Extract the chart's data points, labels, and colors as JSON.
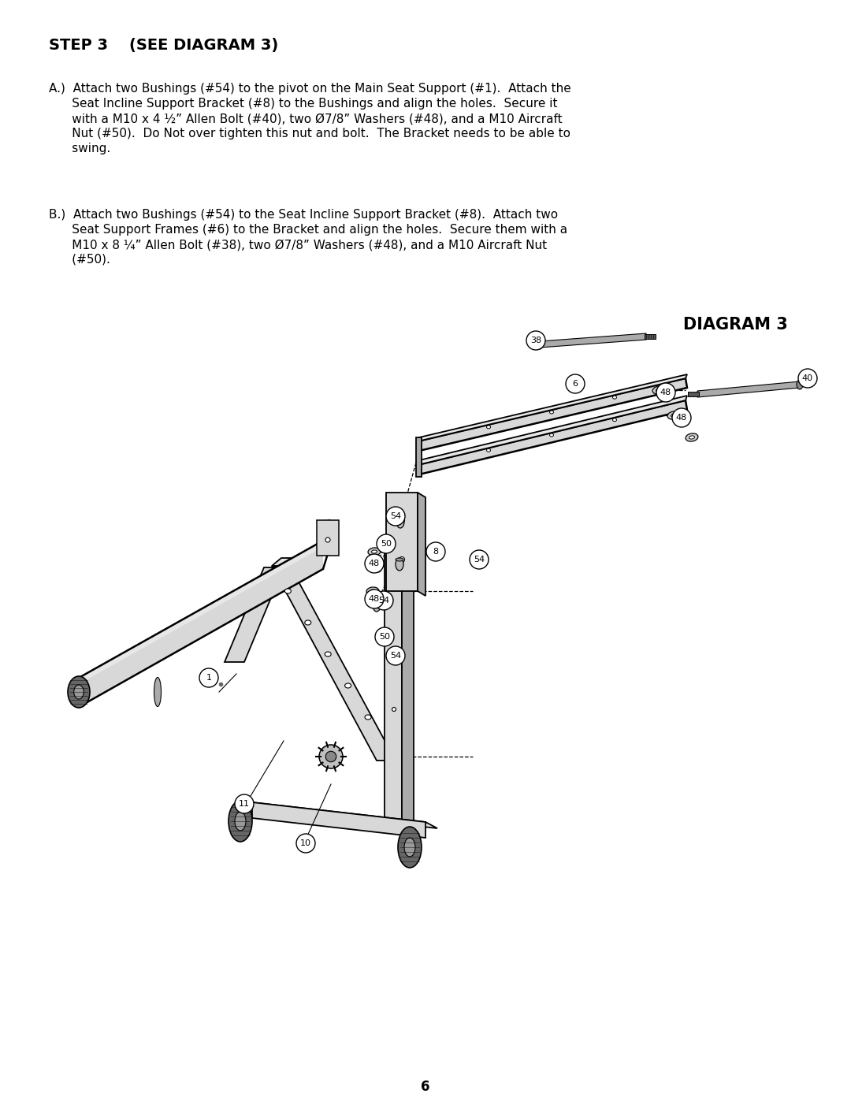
{
  "bg_color": "#ffffff",
  "title": "STEP 3    (SEE DIAGRAM 3)",
  "diagram_label": "DIAGRAM 3",
  "page_number": "6",
  "para_A_lines": [
    "A.)  Attach two Bushings (#54) to the pivot on the Main Seat Support (#1).  Attach the",
    "      Seat Incline Support Bracket (#8) to the Bushings and align the holes.  Secure it",
    "      with a M10 x 4 ½” Allen Bolt (#40), two Ø7/8” Washers (#48), and a M10 Aircraft",
    "      Nut (#50).  Do Not over tighten this nut and bolt.  The Bracket needs to be able to",
    "      swing."
  ],
  "para_B_lines": [
    "B.)  Attach two Bushings (#54) to the Seat Incline Support Bracket (#8).  Attach two",
    "      Seat Support Frames (#6) to the Bracket and align the holes.  Secure them with a",
    "      M10 x 8 ¼” Allen Bolt (#38), two Ø7/8” Washers (#48), and a M10 Aircraft Nut",
    "      (#50)."
  ],
  "title_fontsize": 14,
  "body_fontsize": 11,
  "diagram_title_fontsize": 15,
  "label_fontsize": 8,
  "label_circle_r": 12
}
